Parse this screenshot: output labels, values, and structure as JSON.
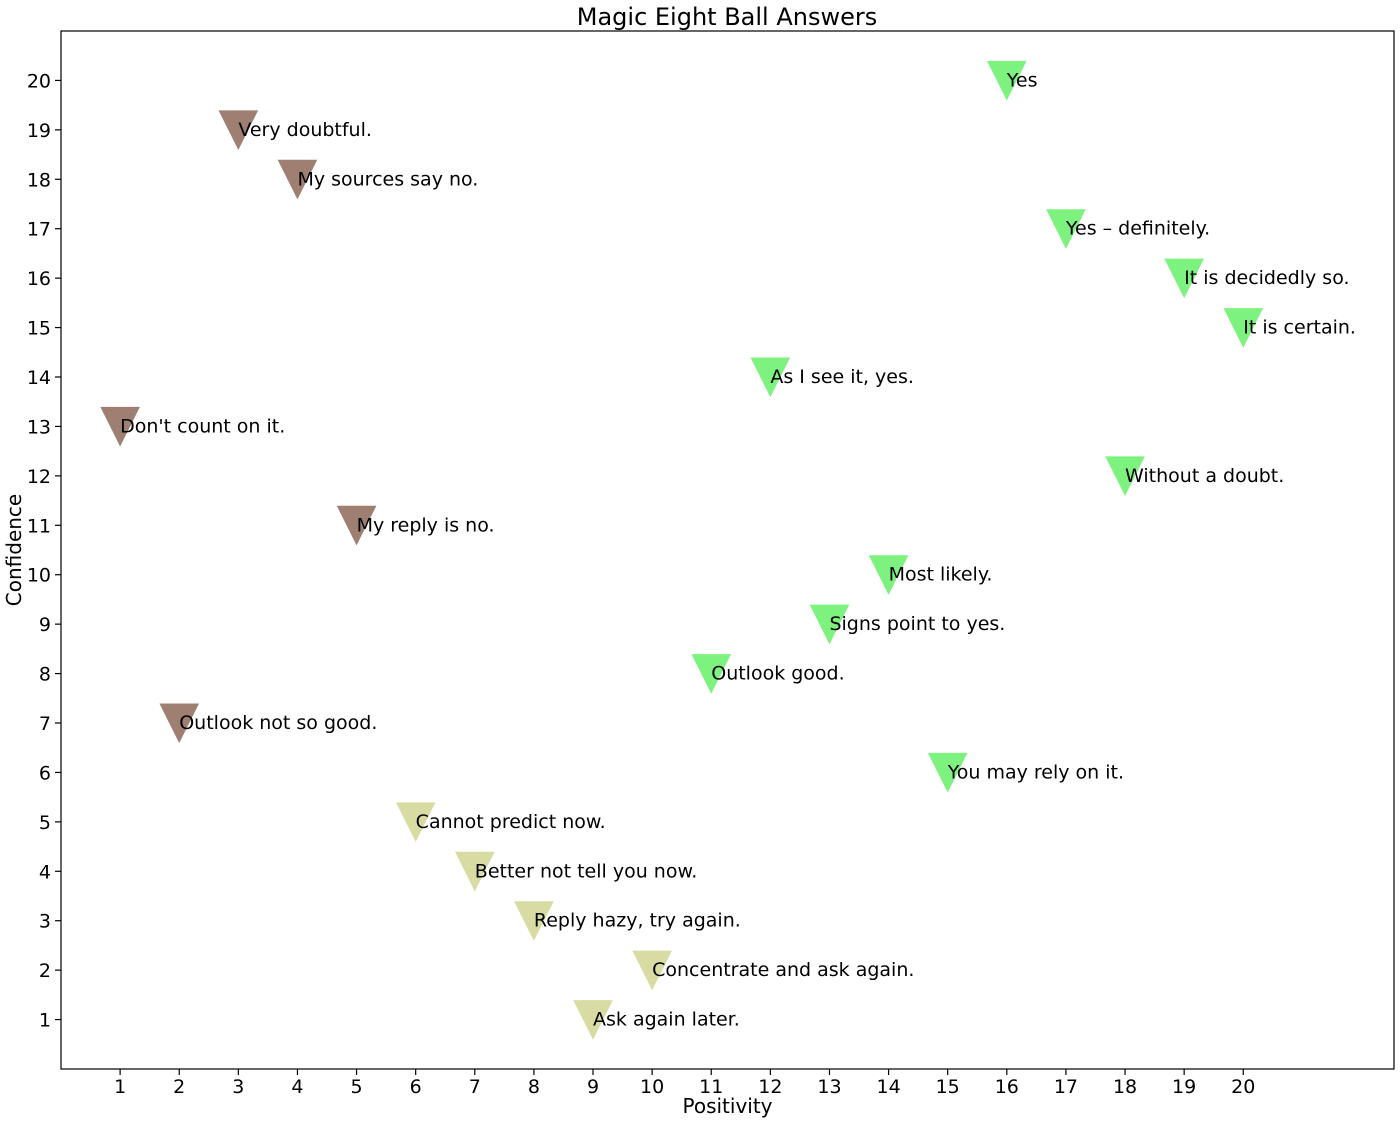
{
  "chart_data": {
    "type": "scatter",
    "marker": "triangle-down",
    "title": "Magic Eight Ball Answers",
    "xlabel": "Positivity",
    "ylabel": "Confidence",
    "xlim": [
      0,
      22.55
    ],
    "ylim": [
      0,
      21
    ],
    "xticks": [
      1,
      2,
      3,
      4,
      5,
      6,
      7,
      8,
      9,
      10,
      11,
      12,
      13,
      14,
      15,
      16,
      17,
      18,
      19,
      20
    ],
    "yticks": [
      1,
      2,
      3,
      4,
      5,
      6,
      7,
      8,
      9,
      10,
      11,
      12,
      13,
      14,
      15,
      16,
      17,
      18,
      19,
      20
    ],
    "grid": false,
    "colors": {
      "negative": "#a07f73",
      "neutral": "#d9dca2",
      "positive": "#7ef27e"
    },
    "points": [
      {
        "x": 16,
        "y": 20,
        "label": "Yes",
        "category": "positive"
      },
      {
        "x": 3,
        "y": 19,
        "label": "Very doubtful.",
        "category": "negative"
      },
      {
        "x": 4,
        "y": 18,
        "label": "My sources say no.",
        "category": "negative"
      },
      {
        "x": 17,
        "y": 17,
        "label": "Yes – definitely.",
        "category": "positive"
      },
      {
        "x": 19,
        "y": 16,
        "label": "It is decidedly so.",
        "category": "positive"
      },
      {
        "x": 20,
        "y": 15,
        "label": "It is certain.",
        "category": "positive"
      },
      {
        "x": 12,
        "y": 14,
        "label": "As I see it, yes.",
        "category": "positive"
      },
      {
        "x": 1,
        "y": 13,
        "label": "Don't count on it.",
        "category": "negative"
      },
      {
        "x": 18,
        "y": 12,
        "label": "Without a doubt.",
        "category": "positive"
      },
      {
        "x": 5,
        "y": 11,
        "label": "My reply is no.",
        "category": "negative"
      },
      {
        "x": 14,
        "y": 10,
        "label": "Most likely.",
        "category": "positive"
      },
      {
        "x": 13,
        "y": 9,
        "label": "Signs point to yes.",
        "category": "positive"
      },
      {
        "x": 11,
        "y": 8,
        "label": "Outlook good.",
        "category": "positive"
      },
      {
        "x": 2,
        "y": 7,
        "label": "Outlook not so good.",
        "category": "negative"
      },
      {
        "x": 15,
        "y": 6,
        "label": "You may rely on it.",
        "category": "positive"
      },
      {
        "x": 6,
        "y": 5,
        "label": "Cannot predict now.",
        "category": "neutral"
      },
      {
        "x": 7,
        "y": 4,
        "label": "Better not tell you now.",
        "category": "neutral"
      },
      {
        "x": 8,
        "y": 3,
        "label": "Reply hazy, try again.",
        "category": "neutral"
      },
      {
        "x": 10,
        "y": 2,
        "label": "Concentrate and ask again.",
        "category": "neutral"
      },
      {
        "x": 9,
        "y": 1,
        "label": "Ask again later.",
        "category": "neutral"
      }
    ]
  }
}
